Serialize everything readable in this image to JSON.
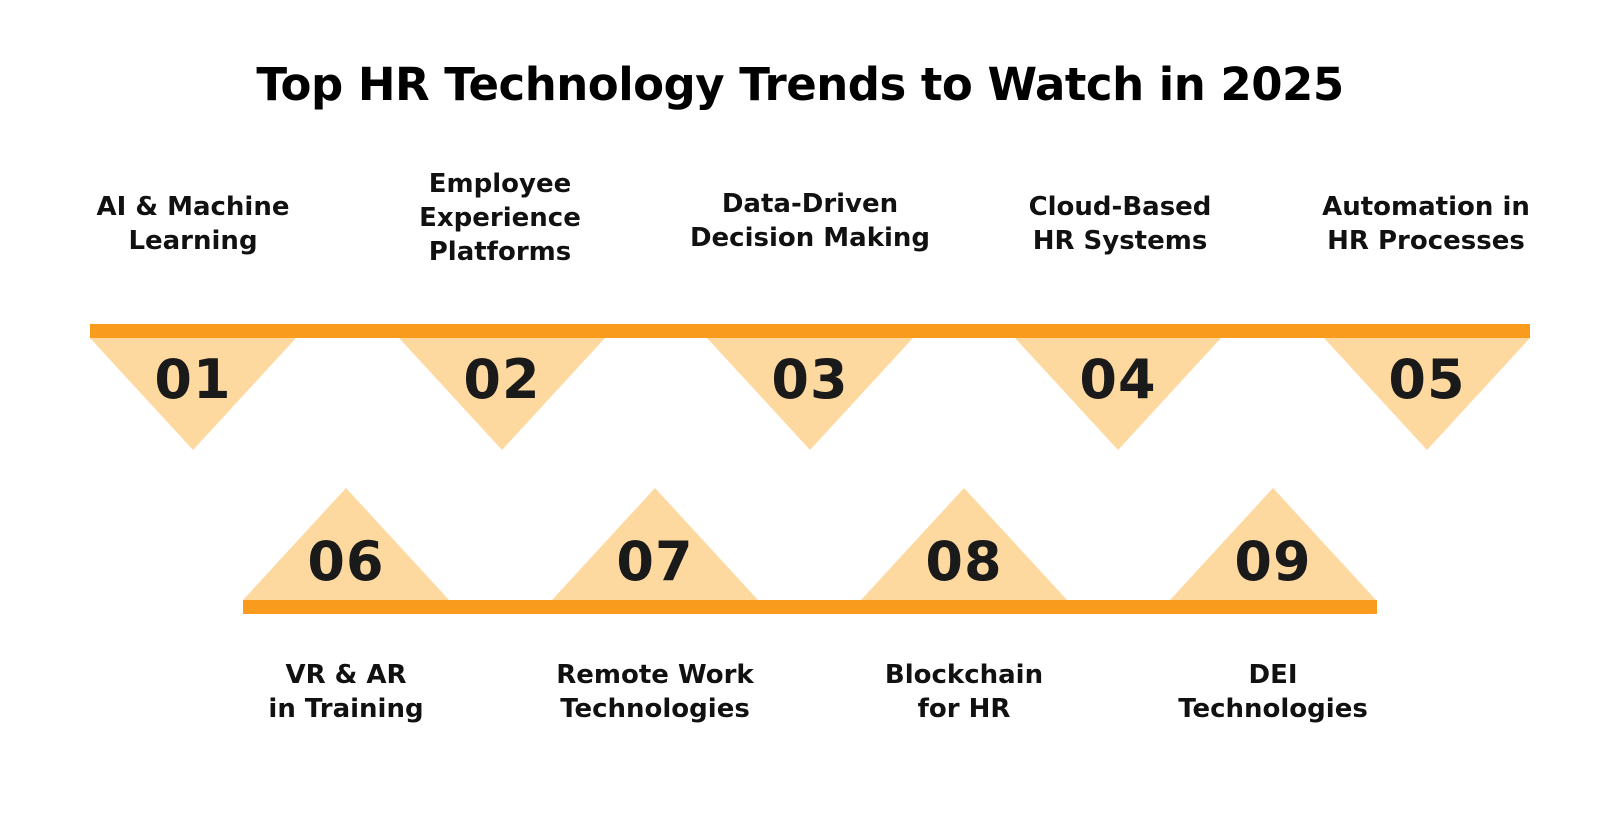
{
  "title": "Top HR Technology Trends to Watch in 2025",
  "colors": {
    "bar": "#f99b1c",
    "triangle": "#fdd9a0",
    "text": "#111111"
  },
  "top_items": [
    {
      "number": "01",
      "label": "AI & Machine\nLearning"
    },
    {
      "number": "02",
      "label": "Employee\nExperience\nPlatforms"
    },
    {
      "number": "03",
      "label": "Data-Driven\nDecision Making"
    },
    {
      "number": "04",
      "label": "Cloud-Based\nHR Systems"
    },
    {
      "number": "05",
      "label": "Automation in\nHR Processes"
    }
  ],
  "bottom_items": [
    {
      "number": "06",
      "label": "VR & AR\nin Training"
    },
    {
      "number": "07",
      "label": "Remote Work\nTechnologies"
    },
    {
      "number": "08",
      "label": "Blockchain\nfor HR"
    },
    {
      "number": "09",
      "label": "DEI\nTechnologies"
    }
  ]
}
